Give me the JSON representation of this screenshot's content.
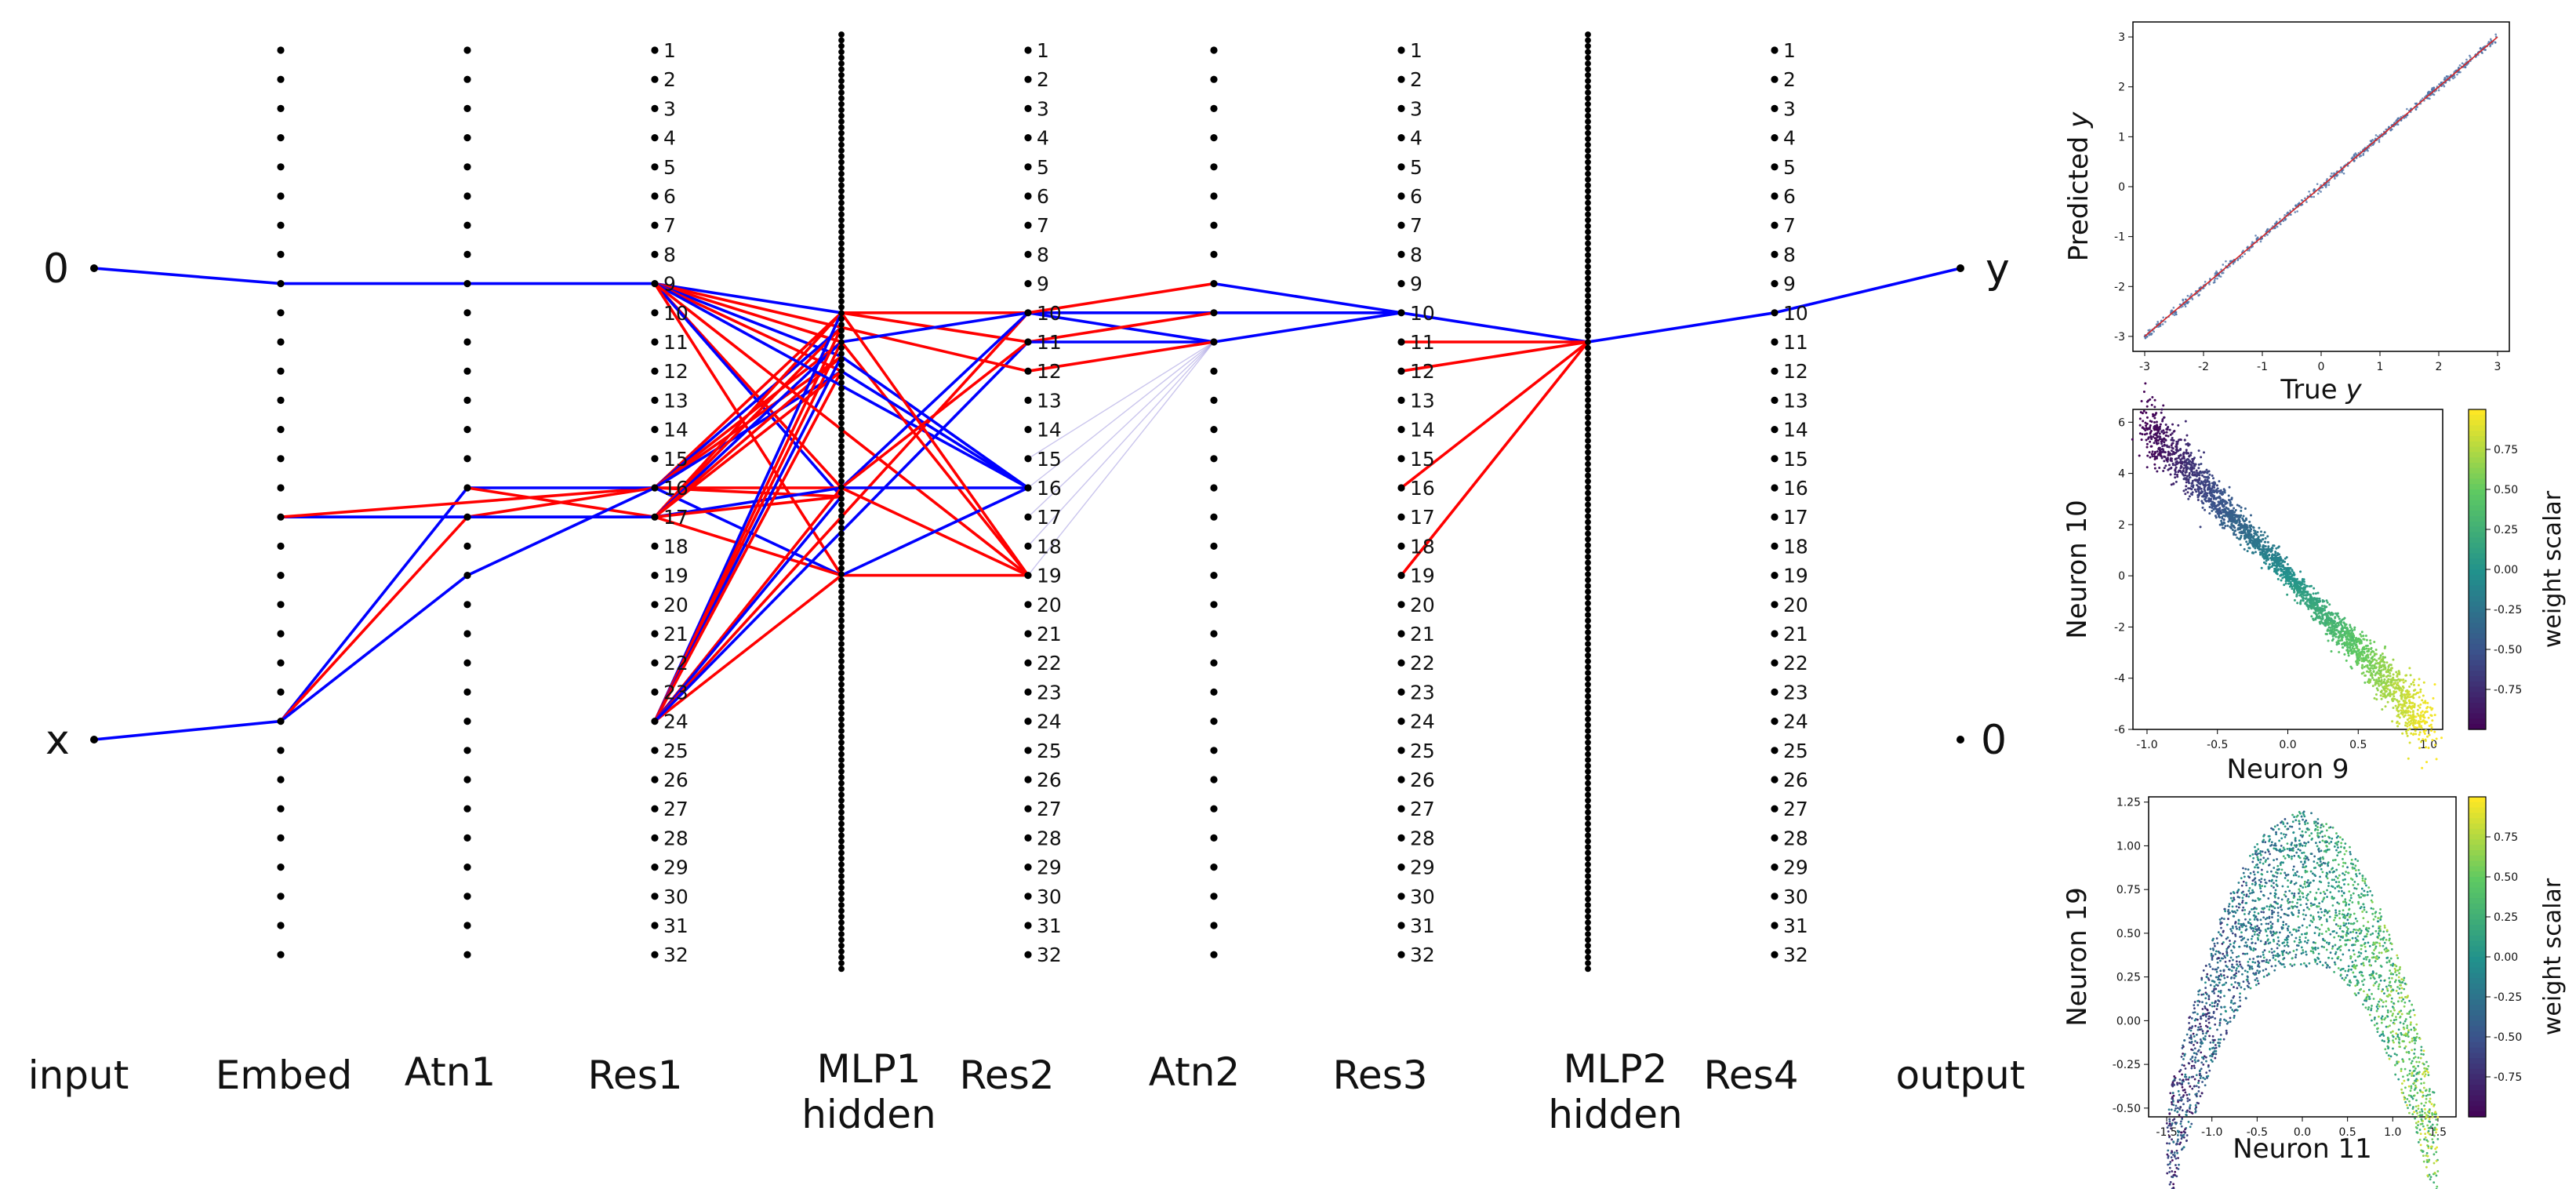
{
  "network": {
    "columns": [
      {
        "id": "input",
        "label": "input"
      },
      {
        "id": "embed",
        "label": "Embed"
      },
      {
        "id": "atn1",
        "label": "Atn1"
      },
      {
        "id": "res1",
        "label": "Res1"
      },
      {
        "id": "mlp1",
        "label": "MLP1",
        "label2": "hidden"
      },
      {
        "id": "res2",
        "label": "Res2"
      },
      {
        "id": "atn2",
        "label": "Atn2"
      },
      {
        "id": "res3",
        "label": "Res3"
      },
      {
        "id": "mlp2",
        "label": "MLP2",
        "label2": "hidden"
      },
      {
        "id": "res4",
        "label": "Res4"
      },
      {
        "id": "output",
        "label": "output"
      }
    ],
    "input_nodes": [
      "0",
      "x"
    ],
    "output_nodes": [
      "y",
      "0"
    ],
    "neuron_indices": [
      "1",
      "2",
      "3",
      "4",
      "5",
      "6",
      "7",
      "8",
      "9",
      "10",
      "11",
      "12",
      "13",
      "14",
      "15",
      "16",
      "17",
      "18",
      "19",
      "20",
      "21",
      "22",
      "23",
      "24",
      "25",
      "26",
      "27",
      "28",
      "29",
      "30",
      "31",
      "32"
    ],
    "edge_colors": {
      "positive": "#ff0000",
      "negative": "#0000ff"
    }
  },
  "chart_data": [
    {
      "type": "scatter",
      "xlabel_text": "True",
      "xlabel_var": "y",
      "ylabel_text": "Predicted",
      "ylabel_var": "y",
      "xlim": [
        -3.2,
        3.2
      ],
      "ylim": [
        -3.3,
        3.3
      ],
      "xticks": [
        "-3",
        "-2",
        "-1",
        "0",
        "1",
        "2",
        "3"
      ],
      "yticks": [
        "-3",
        "-2",
        "-1",
        "0",
        "1",
        "2",
        "3"
      ],
      "x_range": [
        -3,
        3
      ],
      "relation": "y = x",
      "point_color": "#4a6fa5",
      "line_color": "#d62728"
    },
    {
      "type": "scatter",
      "xlabel": "Neuron 9",
      "ylabel": "Neuron 10",
      "xlim": [
        -1.1,
        1.1
      ],
      "ylim": [
        -6,
        6.5
      ],
      "xticks": [
        "-1.0",
        "-0.5",
        "0.0",
        "0.5",
        "1.0"
      ],
      "yticks": [
        "-6",
        "-4",
        "-2",
        "0",
        "2",
        "4",
        "6"
      ],
      "x_range": [
        -1,
        1
      ],
      "relation": "y ≈ -6x (spread grows with |x|)",
      "colormap": "viridis",
      "colorbar_label": "weight scalar",
      "colorbar_ticks": [
        "0.75",
        "0.50",
        "0.25",
        "0.00",
        "-0.25",
        "-0.50",
        "-0.75"
      ],
      "colorbar_range": [
        -1,
        1
      ]
    },
    {
      "type": "scatter",
      "xlabel": "Neuron 11",
      "ylabel": "Neuron 19",
      "xlim": [
        -1.7,
        1.7
      ],
      "ylim": [
        -0.55,
        1.28
      ],
      "xticks": [
        "-1.5",
        "-1.0",
        "-0.5",
        "0.0",
        "0.5",
        "1.0",
        "1.5"
      ],
      "yticks": [
        "-0.50",
        "-0.25",
        "0.00",
        "0.25",
        "0.50",
        "0.75",
        "1.00",
        "1.25"
      ],
      "x_range": [
        -1.5,
        1.5
      ],
      "relation": "arch, peak ≈ 1.2 at x ≈ 0",
      "colormap": "viridis",
      "colorbar_label": "weight scalar",
      "colorbar_ticks": [
        "0.75",
        "0.50",
        "0.25",
        "0.00",
        "-0.25",
        "-0.50",
        "-0.75"
      ],
      "colorbar_range": [
        -1,
        1
      ]
    }
  ]
}
